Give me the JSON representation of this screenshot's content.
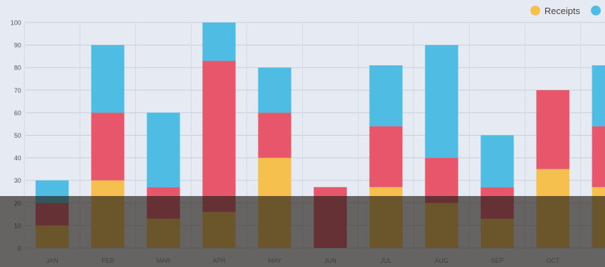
{
  "legend": [
    {
      "label": "Receipts",
      "color": "#f6c04f"
    },
    {
      "label": "",
      "color": "#4fbde3"
    }
  ],
  "chart_data": {
    "type": "bar",
    "stacked": true,
    "categories": [
      "JAN",
      "FEB",
      "MAR",
      "APR",
      "MAY",
      "JUN",
      "JUL",
      "AUG",
      "SEP",
      "OCT",
      ""
    ],
    "series": [
      {
        "name": "Receipts",
        "color": "#f6c04f",
        "values": [
          10,
          30,
          13,
          16,
          40,
          0,
          27,
          20,
          13,
          35,
          27
        ]
      },
      {
        "color": "#e8566b",
        "values": [
          10,
          30,
          14,
          67,
          20,
          27,
          27,
          20,
          14,
          35,
          27
        ]
      },
      {
        "color": "#4fbde3",
        "values": [
          10,
          30,
          33,
          17,
          20,
          0,
          27,
          50,
          23,
          0,
          27
        ]
      }
    ],
    "ylim": [
      0,
      100
    ],
    "yticks": [
      0,
      10,
      20,
      30,
      40,
      50,
      60,
      70,
      80,
      90,
      100
    ],
    "grid": true,
    "legend_position": "top-right"
  }
}
